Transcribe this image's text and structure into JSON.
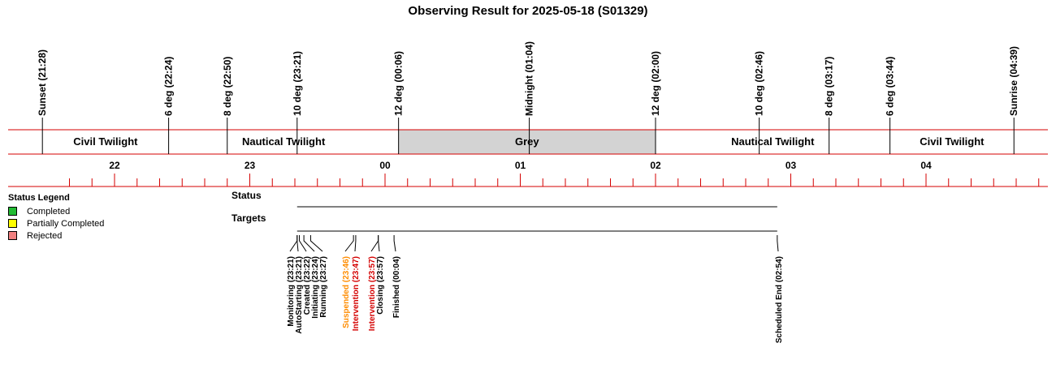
{
  "title": "Observing Result for 2025-05-18 (S01329)",
  "colors": {
    "red": "#d40000",
    "grey_band": "#d3d3d3",
    "orange": "#ff8c00",
    "completed": "#22bb33",
    "partial": "#ffff00",
    "rejected": "#f08080"
  },
  "twilight_markers": [
    {
      "label": "Sunset (21:28)",
      "time": "21:28"
    },
    {
      "label": "6 deg (22:24)",
      "time": "22:24"
    },
    {
      "label": "8 deg (22:50)",
      "time": "22:50"
    },
    {
      "label": "10 deg (23:21)",
      "time": "23:21"
    },
    {
      "label": "12 deg (00:06)",
      "time": "00:06"
    },
    {
      "label": "Midnight (01:04)",
      "time": "01:04"
    },
    {
      "label": "12 deg (02:00)",
      "time": "02:00"
    },
    {
      "label": "10 deg (02:46)",
      "time": "02:46"
    },
    {
      "label": "8 deg (03:17)",
      "time": "03:17"
    },
    {
      "label": "6 deg (03:44)",
      "time": "03:44"
    },
    {
      "label": "Sunrise (04:39)",
      "time": "04:39"
    }
  ],
  "bands": [
    {
      "label": "Civil Twilight",
      "start": "21:28",
      "end": "22:24",
      "shaded": false
    },
    {
      "label": "Nautical Twilight",
      "start": "22:24",
      "end": "00:06",
      "shaded": false
    },
    {
      "label": "Grey",
      "start": "00:06",
      "end": "02:00",
      "shaded": true
    },
    {
      "label": "Nautical Twilight",
      "start": "02:00",
      "end": "03:44",
      "shaded": false
    },
    {
      "label": "Civil Twilight",
      "start": "03:44",
      "end": "04:39",
      "shaded": false
    }
  ],
  "hour_ticks": [
    {
      "label": "22",
      "time": "22:00"
    },
    {
      "label": "23",
      "time": "23:00"
    },
    {
      "label": "00",
      "time": "00:00"
    },
    {
      "label": "01",
      "time": "01:00"
    },
    {
      "label": "02",
      "time": "02:00"
    },
    {
      "label": "03",
      "time": "03:00"
    },
    {
      "label": "04",
      "time": "04:00"
    }
  ],
  "legend": {
    "title": "Status Legend",
    "items": [
      {
        "label": "Completed",
        "color": "#22bb33"
      },
      {
        "label": "Partially Completed",
        "color": "#ffff00"
      },
      {
        "label": "Rejected",
        "color": "#f08080"
      }
    ]
  },
  "rows": {
    "status_label": "Status",
    "targets_label": "Targets"
  },
  "timeline_span": {
    "start": "23:21",
    "end": "02:54"
  },
  "events": [
    {
      "label": "Monitoring (23:21)",
      "time": "23:21",
      "color": "#000000"
    },
    {
      "label": "AutoStarting (23:21)",
      "time": "23:21",
      "color": "#000000"
    },
    {
      "label": "Created (23:22)",
      "time": "23:22",
      "color": "#000000"
    },
    {
      "label": "Initiating (23:24)",
      "time": "23:24",
      "color": "#000000"
    },
    {
      "label": "Running (23:27)",
      "time": "23:27",
      "color": "#000000"
    },
    {
      "label": "Suspended (23:46)",
      "time": "23:46",
      "color": "#ff8c00"
    },
    {
      "label": "Intervention (23:47)",
      "time": "23:47",
      "color": "#d40000"
    },
    {
      "label": "Intervention (23:57)",
      "time": "23:57",
      "color": "#d40000"
    },
    {
      "label": "Closing (23:57)",
      "time": "23:57",
      "color": "#000000"
    },
    {
      "label": "Finished (00:04)",
      "time": "00:04",
      "color": "#000000"
    },
    {
      "label": "Scheduled End (02:54)",
      "time": "02:54",
      "color": "#000000"
    }
  ]
}
